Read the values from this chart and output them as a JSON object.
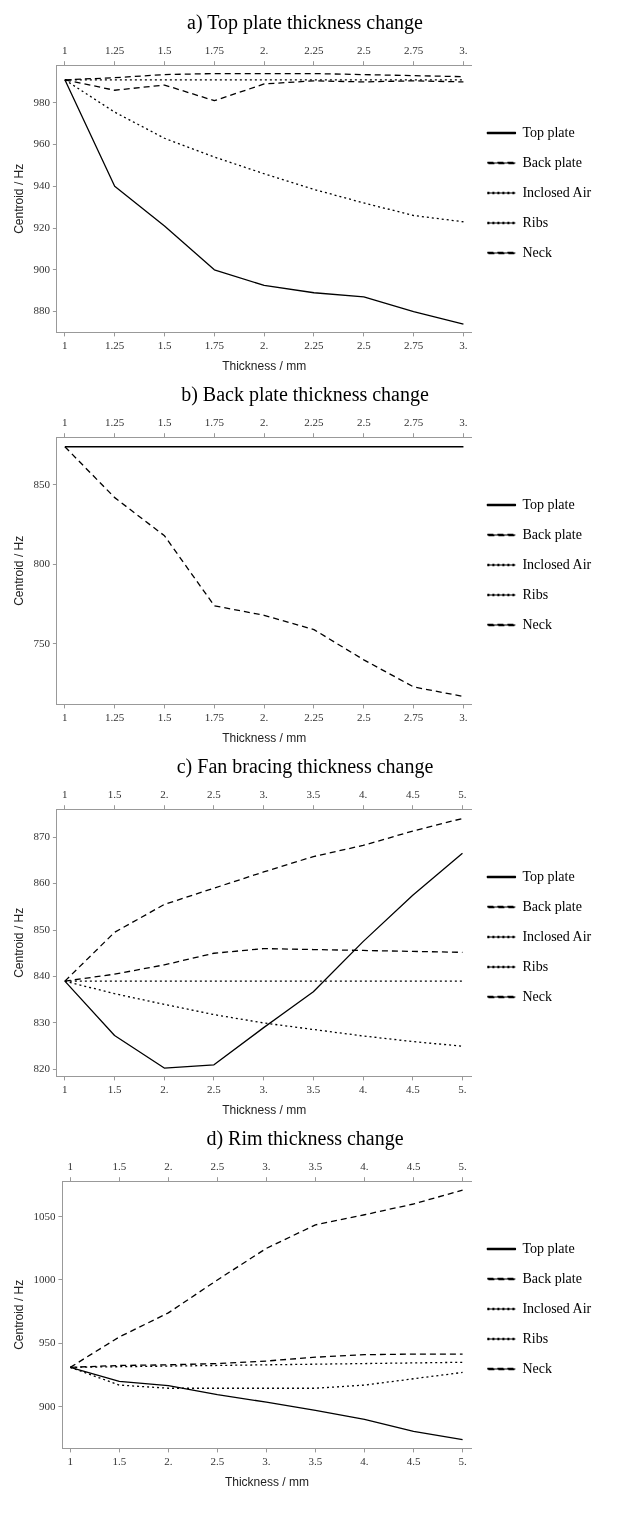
{
  "chart_data": [
    {
      "type": "line",
      "title": "a) Top plate thickness change",
      "xlabel": "Thickness / mm",
      "ylabel": "Centroid / Hz",
      "marker": "none",
      "grid": false,
      "legend": "right",
      "x": [
        1,
        1.25,
        1.5,
        1.75,
        2,
        2.25,
        2.5,
        2.75,
        3
      ],
      "xlim": [
        0.96,
        3.04
      ],
      "xticks": [
        1,
        1.25,
        1.5,
        1.75,
        {
          "value": 2,
          "label": "2."
        },
        2.25,
        2.5,
        2.75,
        {
          "value": 3,
          "label": "3."
        }
      ],
      "x2lim": [
        0.96,
        3.04
      ],
      "x2ticks": [
        1,
        1.25,
        1.5,
        1.75,
        {
          "value": 2,
          "label": "2."
        },
        2.25,
        2.5,
        2.75,
        {
          "value": 3,
          "label": "3."
        }
      ],
      "ylim": [
        870,
        998
      ],
      "yticks": [
        880,
        900,
        920,
        940,
        960,
        980
      ],
      "series": [
        {
          "name": "Top plate",
          "color": "#000000",
          "line_style": "solid",
          "values": [
            991,
            940,
            921,
            900,
            892.5,
            889,
            887,
            880,
            874
          ]
        },
        {
          "name": "Back plate",
          "color": "#000000",
          "line_style": "dashed",
          "values": [
            991,
            992,
            993.5,
            994,
            994,
            994,
            993.5,
            993,
            992.5
          ]
        },
        {
          "name": "Inclosed Air",
          "color": "#000000",
          "line_style": "dotted",
          "values": [
            991,
            975.5,
            963,
            954,
            946,
            938.5,
            932,
            926,
            923
          ]
        },
        {
          "name": "Ribs",
          "color": "#000000",
          "line_style": "dotted",
          "values": [
            991,
            991,
            991,
            991,
            991,
            991,
            991,
            991,
            991
          ]
        },
        {
          "name": "Neck",
          "color": "#000000",
          "line_style": "dashed",
          "values": [
            991,
            986,
            988.5,
            981,
            989,
            990.5,
            990,
            990.5,
            990
          ]
        }
      ]
    },
    {
      "type": "line",
      "title": "b) Back plate thickness change",
      "xlabel": "Thickness / mm",
      "ylabel": "Centroid / Hz",
      "marker": "none",
      "grid": false,
      "legend": "right",
      "x": [
        1,
        1.25,
        1.5,
        1.75,
        2,
        2.25,
        2.5,
        2.75,
        3
      ],
      "xlim": [
        0.96,
        3.04
      ],
      "xticks": [
        1,
        1.25,
        1.5,
        1.75,
        {
          "value": 2,
          "label": "2."
        },
        2.25,
        2.5,
        2.75,
        {
          "value": 3,
          "label": "3."
        }
      ],
      "x2lim": [
        0.96,
        3.04
      ],
      "x2ticks": [
        1,
        1.25,
        1.5,
        1.75,
        {
          "value": 2,
          "label": "2."
        },
        2.25,
        2.5,
        2.75,
        {
          "value": 3,
          "label": "3."
        }
      ],
      "ylim": [
        712,
        880
      ],
      "yticks": [
        750,
        800,
        850
      ],
      "series": [
        {
          "name": "Top plate",
          "color": "#000000",
          "line_style": "solid",
          "values": [
            874,
            874,
            874,
            874,
            874,
            874,
            874,
            874,
            874
          ]
        },
        {
          "name": "Back plate",
          "color": "#000000",
          "line_style": "dashed",
          "values": [
            874,
            842,
            818,
            774,
            768,
            759,
            740,
            723,
            717
          ]
        },
        {
          "name": "Inclosed Air",
          "color": "#000000",
          "line_style": "dotted",
          "values": [
            null,
            null,
            null,
            null,
            null,
            null,
            null,
            null,
            null
          ]
        },
        {
          "name": "Ribs",
          "color": "#000000",
          "line_style": "dotted",
          "values": [
            null,
            null,
            null,
            null,
            null,
            null,
            null,
            null,
            null
          ]
        },
        {
          "name": "Neck",
          "color": "#000000",
          "line_style": "dashed",
          "values": [
            null,
            null,
            null,
            null,
            null,
            null,
            null,
            null,
            null
          ]
        }
      ]
    },
    {
      "type": "line",
      "title": "c) Fan bracing thickness change",
      "xlabel": "Thickness / mm",
      "ylabel": "Centroid / Hz",
      "marker": "none",
      "grid": false,
      "legend": "right",
      "x": [
        1,
        1.5,
        2,
        2.5,
        3,
        3.5,
        4,
        4.5,
        5
      ],
      "xlim": [
        0.92,
        5.09
      ],
      "xticks": [
        1,
        1.5,
        {
          "value": 2,
          "label": "2."
        },
        2.5,
        {
          "value": 3,
          "label": "3."
        },
        3.5,
        {
          "value": 4,
          "label": "4."
        },
        4.5,
        {
          "value": 5,
          "label": "5."
        }
      ],
      "x2lim": [
        0.92,
        5.09
      ],
      "x2ticks": [
        1,
        1.5,
        {
          "value": 2,
          "label": "2."
        },
        2.5,
        {
          "value": 3,
          "label": "3."
        },
        3.5,
        {
          "value": 4,
          "label": "4."
        },
        4.5,
        {
          "value": 5,
          "label": "5."
        }
      ],
      "ylim": [
        818.5,
        876
      ],
      "yticks": [
        820,
        830,
        840,
        850,
        860,
        870
      ],
      "series": [
        {
          "name": "Top plate",
          "color": "#000000",
          "line_style": "solid",
          "values": [
            839,
            827.3,
            820.3,
            821,
            829,
            836.7,
            847.5,
            857.5,
            866.5
          ]
        },
        {
          "name": "Back plate",
          "color": "#000000",
          "line_style": "dashed",
          "values": [
            839,
            840.5,
            842.5,
            845,
            846,
            845.8,
            845.6,
            845.4,
            845.2
          ]
        },
        {
          "name": "Inclosed Air",
          "color": "#000000",
          "line_style": "dotted",
          "values": [
            839,
            836.3,
            834,
            831.8,
            830,
            828.6,
            827.2,
            826,
            825
          ]
        },
        {
          "name": "Ribs",
          "color": "#000000",
          "line_style": "dotted",
          "values": [
            839,
            839,
            839,
            839,
            839,
            839,
            839,
            839,
            839
          ]
        },
        {
          "name": "Neck",
          "color": "#000000",
          "line_style": "dashed",
          "values": [
            839,
            849.5,
            855.5,
            859,
            862.5,
            865.8,
            868.2,
            871.3,
            874
          ]
        }
      ]
    },
    {
      "type": "line",
      "title": "d) Rim thickness change",
      "xlabel": "Thickness / mm",
      "ylabel": "Centroid / Hz",
      "marker": "none",
      "grid": false,
      "legend": "right",
      "x": [
        1,
        1.5,
        2,
        2.5,
        3,
        3.5,
        4,
        4.5,
        5
      ],
      "xlim": [
        0.92,
        5.09
      ],
      "xticks": [
        1,
        1.5,
        {
          "value": 2,
          "label": "2."
        },
        2.5,
        {
          "value": 3,
          "label": "3."
        },
        3.5,
        {
          "value": 4,
          "label": "4."
        },
        4.5,
        {
          "value": 5,
          "label": "5."
        }
      ],
      "x2lim": [
        0.92,
        5.09
      ],
      "x2ticks": [
        1,
        1.5,
        {
          "value": 2,
          "label": "2."
        },
        2.5,
        {
          "value": 3,
          "label": "3."
        },
        3.5,
        {
          "value": 4,
          "label": "4."
        },
        4.5,
        {
          "value": 5,
          "label": "5."
        }
      ],
      "ylim": [
        867,
        1078
      ],
      "yticks": [
        900,
        950,
        1000,
        1050
      ],
      "series": [
        {
          "name": "Top plate",
          "color": "#000000",
          "line_style": "solid",
          "values": [
            931,
            920,
            916.5,
            909.5,
            903.5,
            897,
            890,
            880.5,
            874
          ]
        },
        {
          "name": "Back plate",
          "color": "#000000",
          "line_style": "dashed",
          "values": [
            931,
            955,
            974,
            1000,
            1025,
            1043.5,
            1051.5,
            1060,
            1071
          ]
        },
        {
          "name": "Inclosed Air",
          "color": "#000000",
          "line_style": "dotted",
          "values": [
            931,
            931.5,
            932,
            932.5,
            933,
            933.5,
            934,
            934.5,
            935
          ]
        },
        {
          "name": "Ribs",
          "color": "#000000",
          "line_style": "dotted",
          "values": [
            931,
            917,
            914.5,
            914.5,
            914.5,
            914.5,
            917,
            922,
            927
          ]
        },
        {
          "name": "Neck",
          "color": "#000000",
          "line_style": "dashed",
          "values": [
            931,
            932.5,
            933,
            934,
            936,
            939,
            941,
            941.5,
            941.5
          ]
        }
      ]
    }
  ]
}
